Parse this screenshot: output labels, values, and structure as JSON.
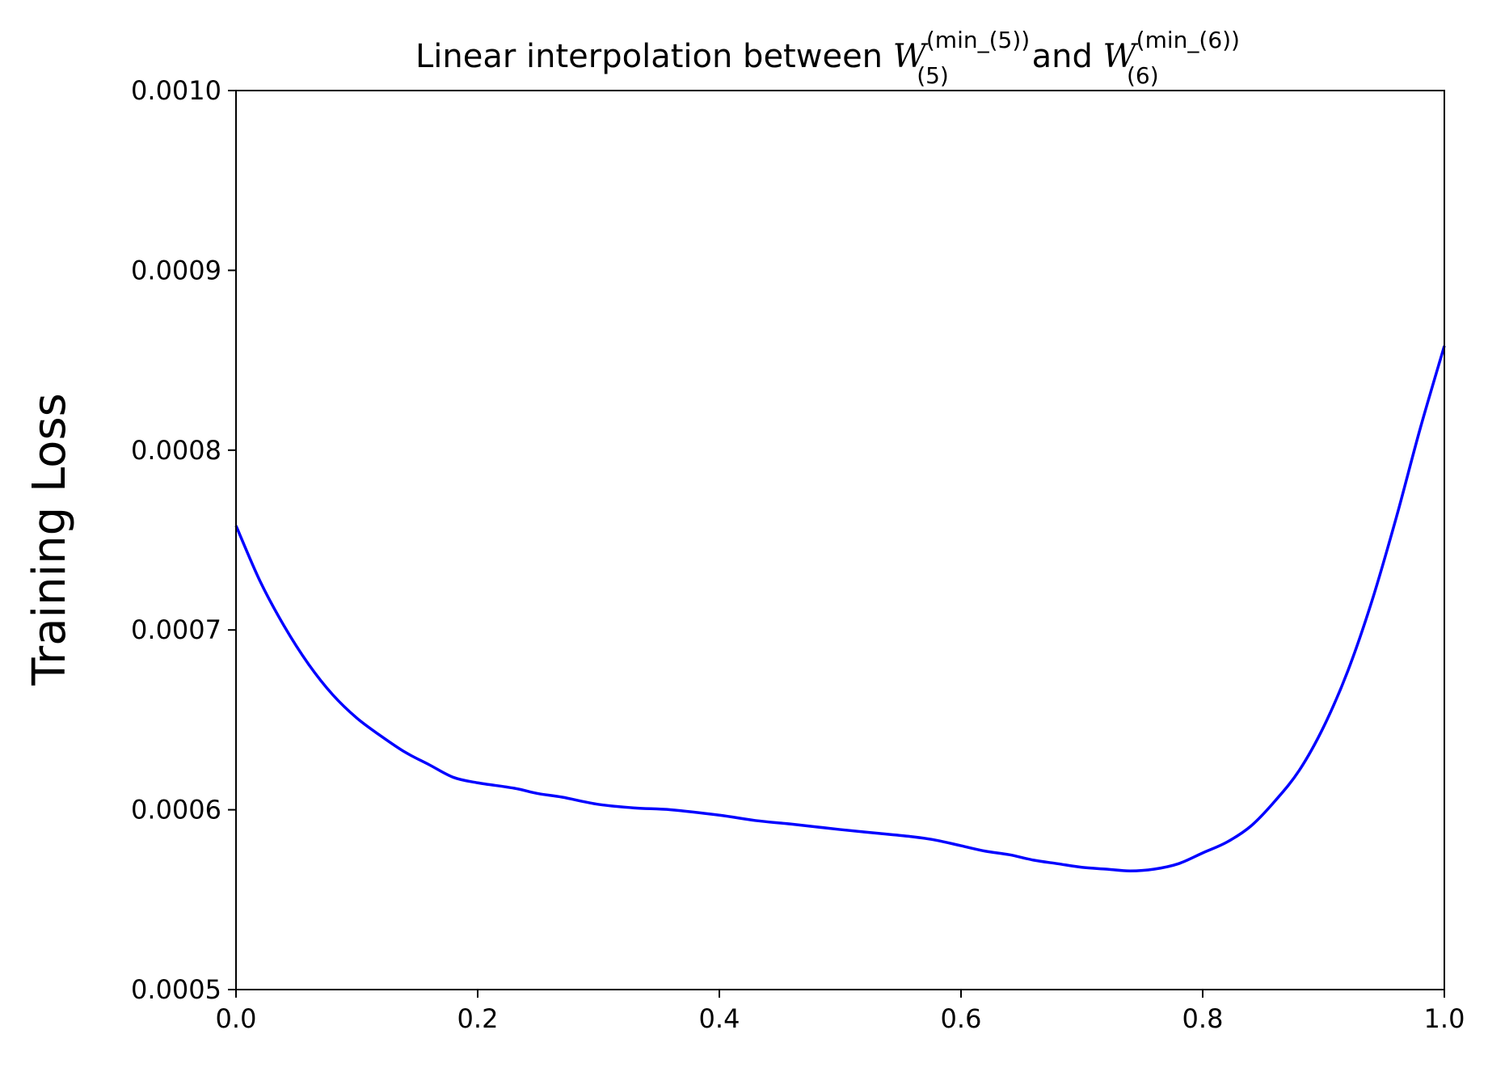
{
  "chart_data": {
    "type": "line",
    "title": {
      "prefix": "Linear interpolation between ",
      "var1": "W",
      "var1_sup": "(min_(5))",
      "var1_sub": "(5)",
      "conjunction": " and ",
      "var2": "W",
      "var2_sup": "(min_(6))",
      "var2_sub": "(6)"
    },
    "xlabel": "",
    "ylabel": "Training Loss",
    "xlim": [
      0.0,
      1.0
    ],
    "ylim": [
      0.0005,
      0.001
    ],
    "x_ticks": [
      "0.0",
      "0.2",
      "0.4",
      "0.6",
      "0.8",
      "1.0"
    ],
    "y_ticks": [
      "0.0005",
      "0.0006",
      "0.0007",
      "0.0008",
      "0.0009",
      "0.0010"
    ],
    "grid": false,
    "series": [
      {
        "color": "#0000ff",
        "x": [
          0.0,
          0.02,
          0.04,
          0.06,
          0.08,
          0.1,
          0.12,
          0.14,
          0.16,
          0.18,
          0.2,
          0.23,
          0.25,
          0.27,
          0.3,
          0.33,
          0.36,
          0.4,
          0.43,
          0.46,
          0.5,
          0.53,
          0.56,
          0.58,
          0.6,
          0.62,
          0.64,
          0.66,
          0.68,
          0.7,
          0.72,
          0.74,
          0.76,
          0.78,
          0.8,
          0.82,
          0.84,
          0.86,
          0.88,
          0.9,
          0.92,
          0.94,
          0.96,
          0.98,
          1.0
        ],
        "y": [
          0.000758,
          0.000727,
          0.000702,
          0.000681,
          0.000664,
          0.000651,
          0.000641,
          0.000632,
          0.000625,
          0.000618,
          0.000615,
          0.000612,
          0.000609,
          0.000607,
          0.000603,
          0.000601,
          0.0006,
          0.000597,
          0.000594,
          0.000592,
          0.000589,
          0.000587,
          0.000585,
          0.000583,
          0.00058,
          0.000577,
          0.000575,
          0.000572,
          0.00057,
          0.000568,
          0.000567,
          0.000566,
          0.000567,
          0.00057,
          0.000576,
          0.000582,
          0.000591,
          0.000605,
          0.000622,
          0.000646,
          0.000677,
          0.000716,
          0.000762,
          0.000812,
          0.000858
        ]
      }
    ]
  }
}
